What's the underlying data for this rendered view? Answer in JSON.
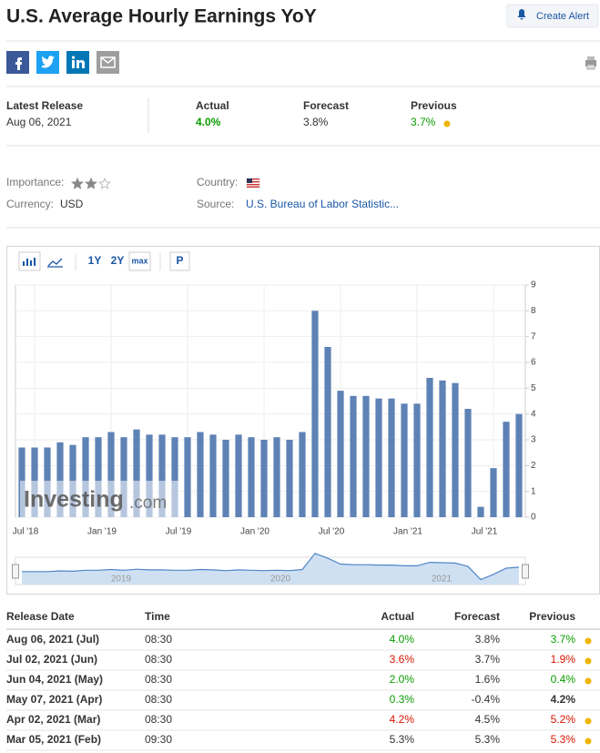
{
  "header": {
    "title": "U.S. Average Hourly Earnings YoY",
    "alert_button": "Create Alert"
  },
  "latest_release": {
    "label": "Latest Release",
    "date": "Aug 06, 2021"
  },
  "actual": {
    "label": "Actual",
    "value": "4.0%",
    "color": "#0a9c00"
  },
  "forecast": {
    "label": "Forecast",
    "value": "3.8%",
    "color": "#333333"
  },
  "previous": {
    "label": "Previous",
    "value": "3.7%",
    "color": "#0a9c00"
  },
  "details": {
    "importance_label": "Importance:",
    "importance": 2,
    "importance_max": 3,
    "country_label": "Country:",
    "currency_label": "Currency:",
    "currency": "USD",
    "source_label": "Source:",
    "source": "U.S. Bureau of Labor Statistic..."
  },
  "chart_toolbar": [
    "1Y",
    "2Y",
    "max",
    "P"
  ],
  "chart_data": {
    "type": "bar",
    "categories": [
      null,
      "Jul '18",
      null,
      null,
      null,
      null,
      null,
      "Jan '19",
      null,
      null,
      null,
      null,
      null,
      "Jul '19",
      null,
      null,
      null,
      null,
      null,
      "Jan '20",
      null,
      null,
      null,
      null,
      null,
      "Jul '20",
      null,
      null,
      null,
      null,
      null,
      "Jan '21",
      null,
      null,
      null,
      null,
      null,
      "Jul '21",
      null,
      null
    ],
    "values": [
      2.7,
      2.7,
      2.7,
      2.9,
      2.8,
      3.1,
      3.1,
      3.3,
      3.1,
      3.4,
      3.2,
      3.2,
      3.1,
      3.1,
      3.3,
      3.2,
      3.0,
      3.2,
      3.1,
      3.0,
      3.1,
      3.0,
      3.3,
      8.0,
      6.6,
      4.9,
      4.7,
      4.7,
      4.6,
      4.6,
      4.4,
      4.4,
      5.4,
      5.3,
      5.2,
      4.2,
      0.4,
      1.9,
      3.7,
      4.0
    ],
    "color": "#5e82b5",
    "ylim": [
      0,
      9
    ],
    "yticks": [
      0,
      1,
      2,
      3,
      4,
      5,
      6,
      7,
      8,
      9
    ],
    "grid": true,
    "watermark": [
      "Investing",
      ".com"
    ],
    "navigator_labels": [
      "2019",
      "2020",
      "2021"
    ]
  },
  "table": {
    "columns": [
      "Release Date",
      "Time",
      "Actual",
      "Forecast",
      "Previous"
    ],
    "dot_color": "#f0b400",
    "rows": [
      {
        "cells": [
          "Aug 06, 2021 (Jul)",
          "08:30",
          "4.0%",
          "3.8%",
          "3.7%"
        ],
        "actual_color": "#0a9c00",
        "previous_color": "#0a9c00",
        "dot": true
      },
      {
        "cells": [
          "Jul 02, 2021 (Jun)",
          "08:30",
          "3.6%",
          "3.7%",
          "1.9%"
        ],
        "actual_color": "#d91400",
        "previous_color": "#d91400",
        "dot": true
      },
      {
        "cells": [
          "Jun 04, 2021 (May)",
          "08:30",
          "2.0%",
          "1.6%",
          "0.4%"
        ],
        "actual_color": "#0a9c00",
        "previous_color": "#0a9c00",
        "dot": true
      },
      {
        "cells": [
          "May 07, 2021 (Apr)",
          "08:30",
          "0.3%",
          "-0.4%",
          "4.2%"
        ],
        "actual_color": "#0a9c00",
        "previous_color": "#333333",
        "dot": false
      },
      {
        "cells": [
          "Apr 02, 2021 (Mar)",
          "08:30",
          "4.2%",
          "4.5%",
          "5.2%"
        ],
        "actual_color": "#d91400",
        "previous_color": "#d91400",
        "dot": true
      },
      {
        "cells": [
          "Mar 05, 2021 (Feb)",
          "09:30",
          "5.3%",
          "5.3%",
          "5.3%"
        ],
        "actual_color": "#333333",
        "previous_color": "#d91400",
        "dot": true
      }
    ]
  }
}
